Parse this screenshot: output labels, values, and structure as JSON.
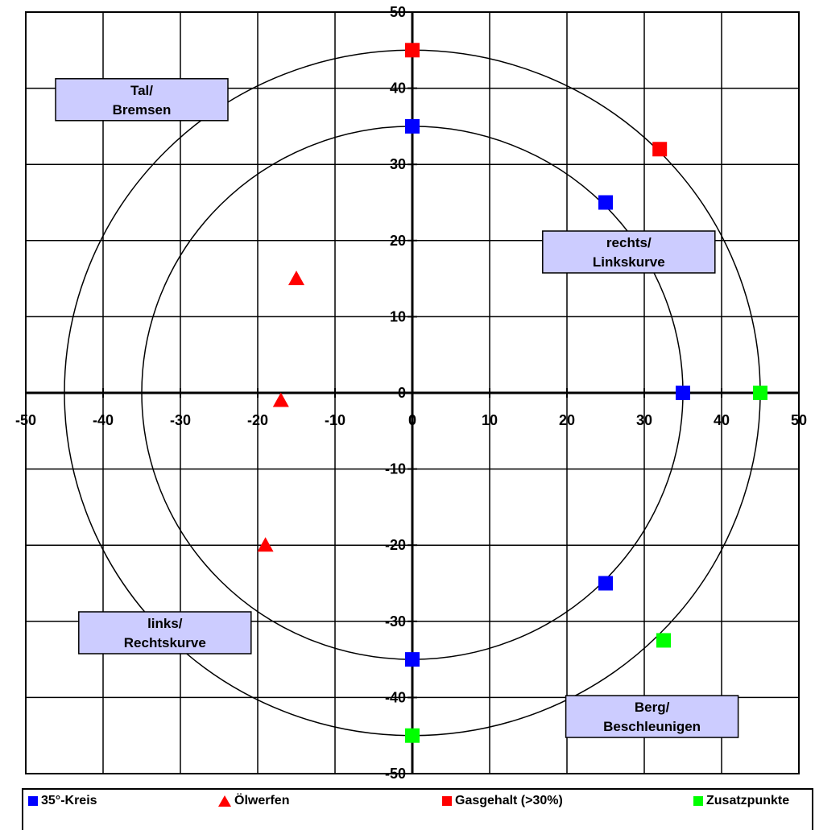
{
  "chart_data": {
    "type": "scatter",
    "xlim": [
      -50,
      50
    ],
    "ylim": [
      -50,
      50
    ],
    "x_ticks": [
      -50,
      -40,
      -30,
      -20,
      -10,
      0,
      10,
      20,
      30,
      40,
      50
    ],
    "y_ticks": [
      -50,
      -40,
      -30,
      -20,
      -10,
      0,
      10,
      20,
      30,
      40,
      50
    ],
    "grid": true,
    "legend_position": "bottom",
    "circles": [
      {
        "radius": 35,
        "color": "#000000"
      },
      {
        "radius": 45,
        "color": "#000000"
      }
    ],
    "series": [
      {
        "name": "35°-Kreis",
        "marker": "square",
        "color": "#0000ff",
        "points": [
          [
            0,
            35
          ],
          [
            25,
            25
          ],
          [
            35,
            0
          ],
          [
            25,
            -25
          ],
          [
            0,
            -35
          ]
        ]
      },
      {
        "name": "Ölwerfen",
        "marker": "triangle",
        "color": "#ff0000",
        "points": [
          [
            -15,
            15
          ],
          [
            -17,
            -1
          ],
          [
            -19,
            -20
          ]
        ]
      },
      {
        "name": "Gasgehalt (>30%)",
        "marker": "square",
        "color": "#ff0000",
        "points": [
          [
            0,
            45
          ],
          [
            32,
            32
          ]
        ]
      },
      {
        "name": "Zusatzpunkte",
        "marker": "square",
        "color": "#00ff00",
        "points": [
          [
            45,
            0
          ],
          [
            32.5,
            -32.5
          ],
          [
            0,
            -45
          ]
        ]
      }
    ],
    "annotations": [
      {
        "lines": [
          "Tal/",
          "Bremsen"
        ],
        "x": -35,
        "y": 38.5
      },
      {
        "lines": [
          "rechts/",
          "Linkskurve"
        ],
        "x": 28,
        "y": 18.5
      },
      {
        "lines": [
          "links/",
          "Rechtskurve"
        ],
        "x": -32,
        "y": -31.5
      },
      {
        "lines": [
          "Berg/",
          "Beschleunigen"
        ],
        "x": 31,
        "y": -42.5
      }
    ]
  }
}
